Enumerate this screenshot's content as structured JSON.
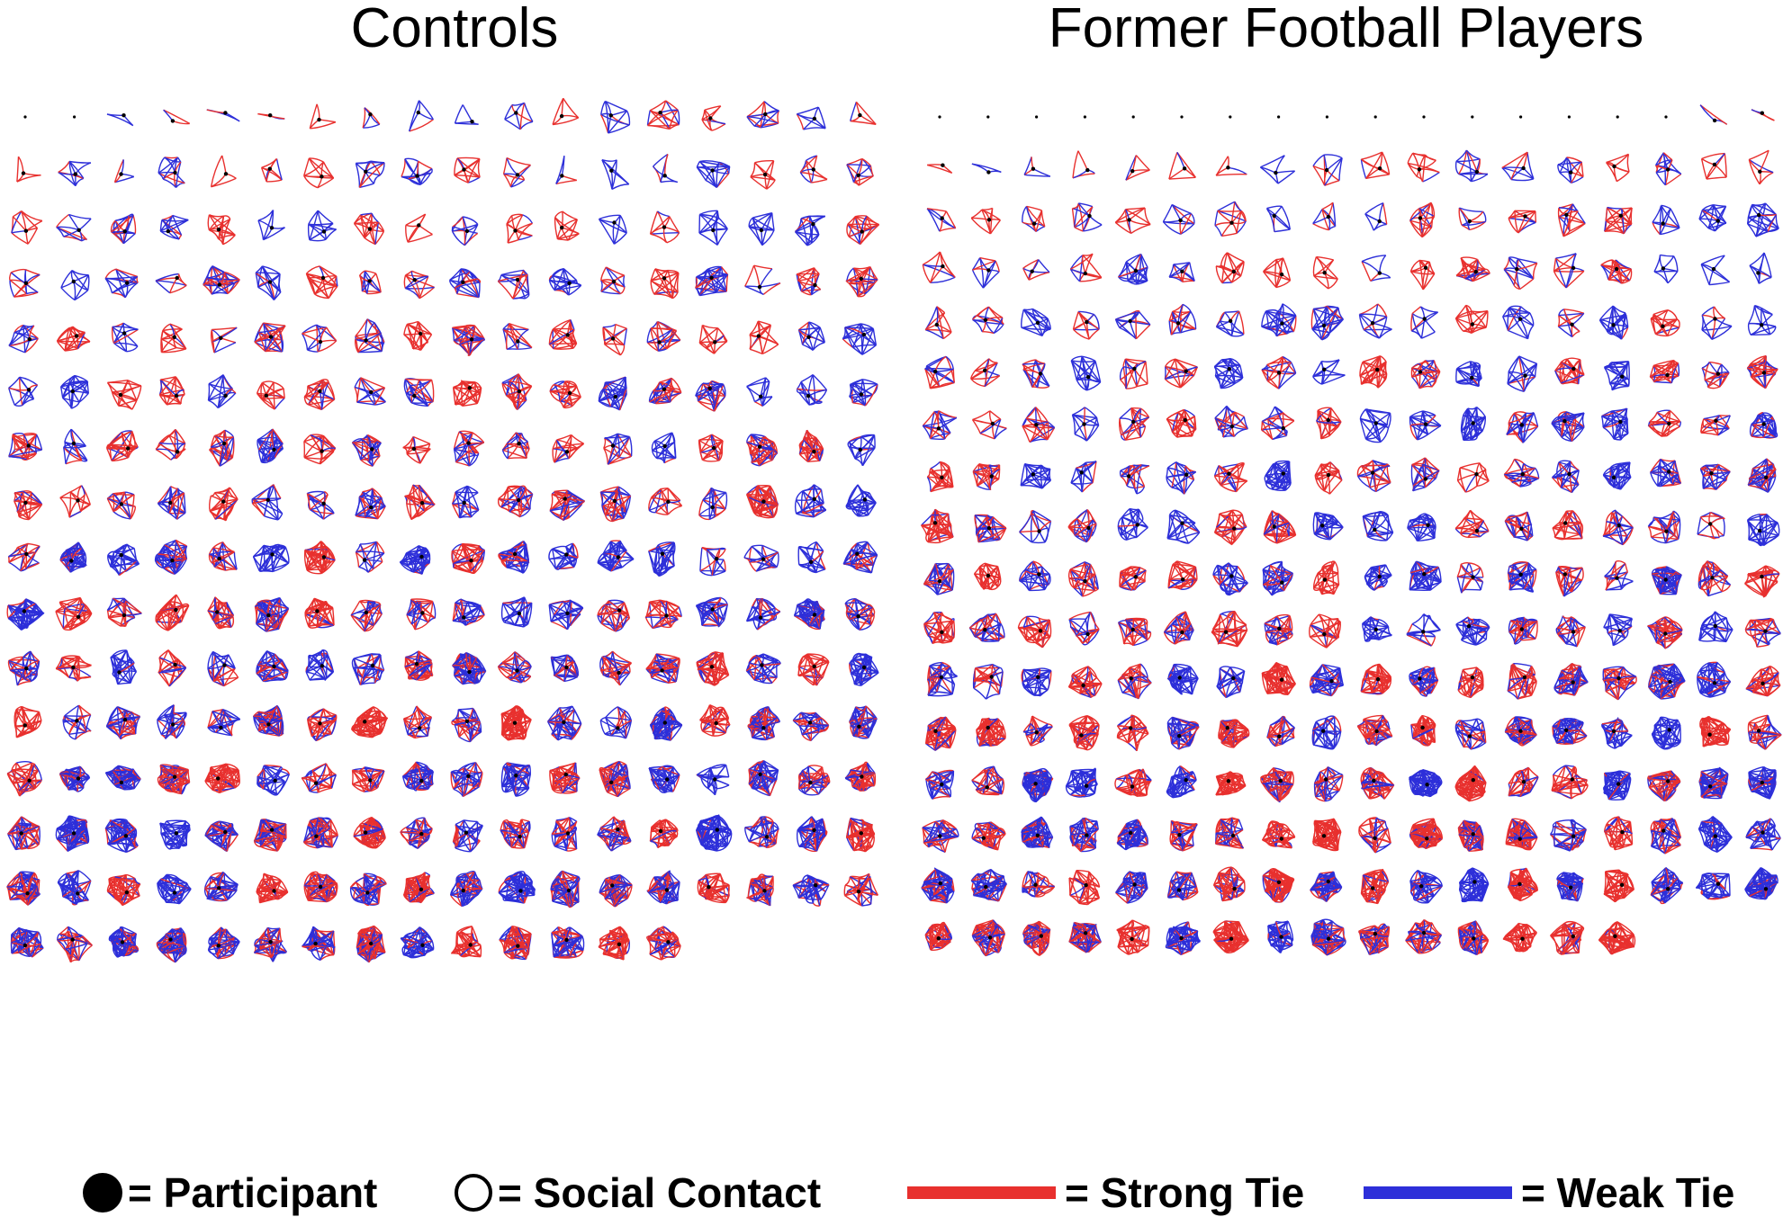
{
  "colors": {
    "strong_tie": "#e8302e",
    "weak_tie": "#2d2fd9",
    "node": "#000000",
    "background": "#ffffff"
  },
  "panels": {
    "left_title": "Controls",
    "right_title": "Former Football Players"
  },
  "legend": {
    "participant": "= Participant",
    "social_contact": "= Social Contact",
    "strong_tie": "= Strong Tie",
    "weak_tie": "= Weak Tie"
  },
  "grid": {
    "controls": {
      "columns": 18,
      "rows": 16,
      "last_row_count": 14,
      "isolate_first_count": 2
    },
    "players": {
      "columns": 18,
      "rows": 17,
      "last_row_count": 15,
      "isolate_first_count": 16
    }
  }
}
